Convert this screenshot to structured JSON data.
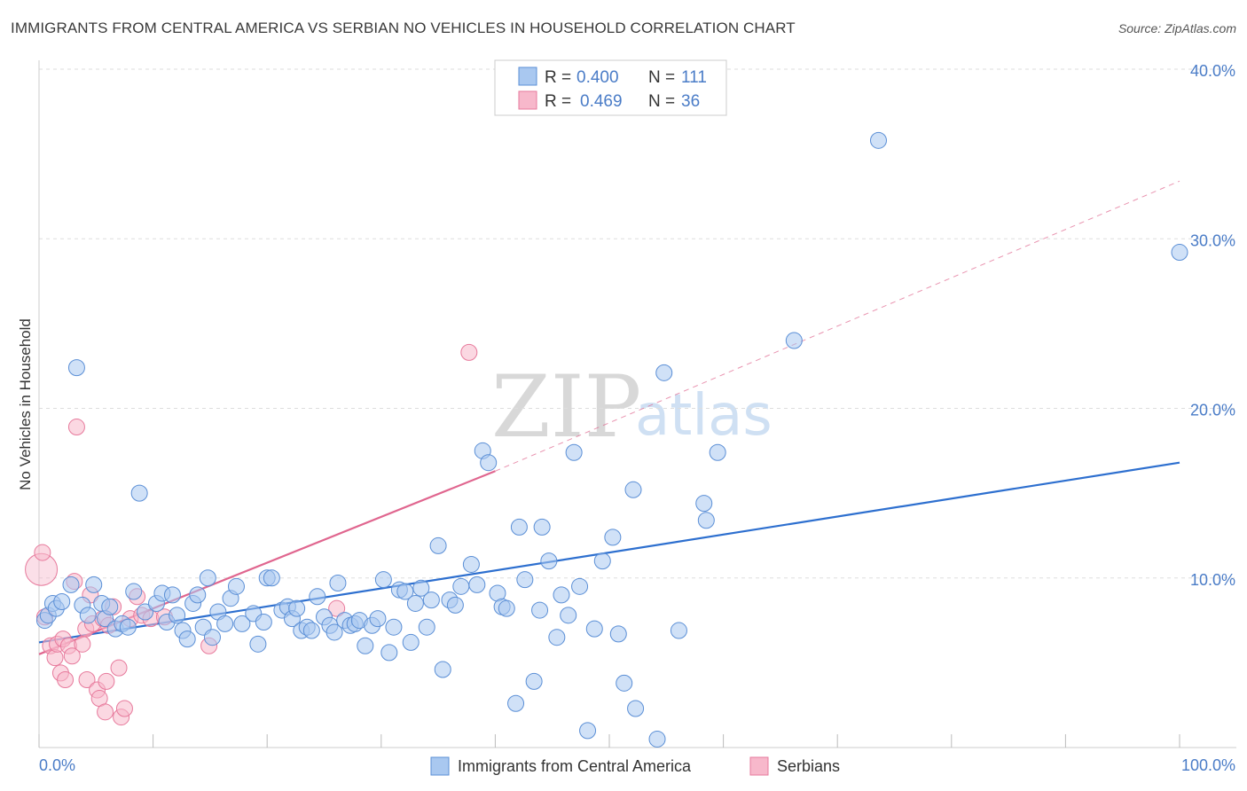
{
  "title": "IMMIGRANTS FROM CENTRAL AMERICA VS SERBIAN NO VEHICLES IN HOUSEHOLD CORRELATION CHART",
  "source": "Source: ZipAtlas.com",
  "watermark": {
    "zip": "ZIP",
    "atlas": "atlas"
  },
  "colors": {
    "blue_fill": "#a9c8f0",
    "blue_stroke": "#5b8fd6",
    "blue_line": "#2d6fcf",
    "pink_fill": "#f7b8cb",
    "pink_stroke": "#e77a9c",
    "pink_line": "#e0668f",
    "tick_text": "#4a7cc7",
    "grid": "#dddddd"
  },
  "legend_top": {
    "rows": [
      {
        "r_label": "R = ",
        "r_value": "0.400",
        "n_label": "N = ",
        "n_value": "111",
        "series": "blue"
      },
      {
        "r_label": "R = ",
        "r_value": "0.469",
        "n_label": "N = ",
        "n_value": "36",
        "series": "pink"
      }
    ]
  },
  "legend_bottom": [
    {
      "label": "Immigrants from Central America",
      "series": "blue"
    },
    {
      "label": "Serbians",
      "series": "pink"
    }
  ],
  "chart_data": {
    "type": "scatter",
    "title": "IMMIGRANTS FROM CENTRAL AMERICA VS SERBIAN NO VEHICLES IN HOUSEHOLD CORRELATION CHART",
    "xlabel": "",
    "ylabel": "No Vehicles in Household",
    "xlim": [
      0,
      100
    ],
    "ylim": [
      0,
      40
    ],
    "x_tick_labels": [
      "0.0%",
      "100.0%"
    ],
    "y_ticks": [
      10,
      20,
      30,
      40
    ],
    "y_tick_labels": [
      "10.0%",
      "20.0%",
      "30.0%",
      "40.0%"
    ],
    "series": [
      {
        "name": "Immigrants from Central America",
        "color": "blue",
        "R": 0.4,
        "N": 111,
        "trend": {
          "x": [
            0,
            100
          ],
          "y": [
            6.2,
            16.8
          ],
          "style": "solid"
        },
        "points": [
          {
            "x": 0.5,
            "y": 7.5
          },
          {
            "x": 0.8,
            "y": 7.8
          },
          {
            "x": 1.2,
            "y": 8.5
          },
          {
            "x": 1.5,
            "y": 8.2
          },
          {
            "x": 2.0,
            "y": 8.6
          },
          {
            "x": 2.8,
            "y": 9.6
          },
          {
            "x": 3.3,
            "y": 22.4
          },
          {
            "x": 3.8,
            "y": 8.4
          },
          {
            "x": 4.3,
            "y": 7.8
          },
          {
            "x": 4.8,
            "y": 9.6
          },
          {
            "x": 5.5,
            "y": 8.5
          },
          {
            "x": 5.8,
            "y": 7.6
          },
          {
            "x": 6.2,
            "y": 8.3
          },
          {
            "x": 6.7,
            "y": 7.0
          },
          {
            "x": 7.3,
            "y": 7.3
          },
          {
            "x": 7.8,
            "y": 7.1
          },
          {
            "x": 8.3,
            "y": 9.2
          },
          {
            "x": 8.8,
            "y": 15.0
          },
          {
            "x": 9.3,
            "y": 8.0
          },
          {
            "x": 10.3,
            "y": 8.5
          },
          {
            "x": 10.8,
            "y": 9.1
          },
          {
            "x": 11.2,
            "y": 7.4
          },
          {
            "x": 11.7,
            "y": 9.0
          },
          {
            "x": 12.1,
            "y": 7.8
          },
          {
            "x": 12.6,
            "y": 6.9
          },
          {
            "x": 13.0,
            "y": 6.4
          },
          {
            "x": 13.5,
            "y": 8.5
          },
          {
            "x": 13.9,
            "y": 9.0
          },
          {
            "x": 14.4,
            "y": 7.1
          },
          {
            "x": 14.8,
            "y": 10.0
          },
          {
            "x": 15.2,
            "y": 6.5
          },
          {
            "x": 15.7,
            "y": 8.0
          },
          {
            "x": 16.3,
            "y": 7.3
          },
          {
            "x": 16.8,
            "y": 8.8
          },
          {
            "x": 17.3,
            "y": 9.5
          },
          {
            "x": 17.8,
            "y": 7.3
          },
          {
            "x": 18.8,
            "y": 7.9
          },
          {
            "x": 19.2,
            "y": 6.1
          },
          {
            "x": 19.7,
            "y": 7.4
          },
          {
            "x": 20.0,
            "y": 10.0
          },
          {
            "x": 20.4,
            "y": 10.0
          },
          {
            "x": 21.3,
            "y": 8.1
          },
          {
            "x": 21.8,
            "y": 8.3
          },
          {
            "x": 22.2,
            "y": 7.6
          },
          {
            "x": 22.6,
            "y": 8.2
          },
          {
            "x": 23.0,
            "y": 6.9
          },
          {
            "x": 23.5,
            "y": 7.1
          },
          {
            "x": 23.9,
            "y": 6.9
          },
          {
            "x": 24.4,
            "y": 8.9
          },
          {
            "x": 25.0,
            "y": 7.7
          },
          {
            "x": 25.5,
            "y": 7.2
          },
          {
            "x": 25.9,
            "y": 6.8
          },
          {
            "x": 26.2,
            "y": 9.7
          },
          {
            "x": 26.8,
            "y": 7.5
          },
          {
            "x": 27.3,
            "y": 7.2
          },
          {
            "x": 27.7,
            "y": 7.3
          },
          {
            "x": 28.1,
            "y": 7.5
          },
          {
            "x": 28.6,
            "y": 6.0
          },
          {
            "x": 29.2,
            "y": 7.2
          },
          {
            "x": 29.7,
            "y": 7.6
          },
          {
            "x": 30.2,
            "y": 9.9
          },
          {
            "x": 30.7,
            "y": 5.6
          },
          {
            "x": 31.1,
            "y": 7.1
          },
          {
            "x": 31.6,
            "y": 9.3
          },
          {
            "x": 32.1,
            "y": 9.2
          },
          {
            "x": 32.6,
            "y": 6.2
          },
          {
            "x": 33.0,
            "y": 8.5
          },
          {
            "x": 33.5,
            "y": 9.4
          },
          {
            "x": 34.0,
            "y": 7.1
          },
          {
            "x": 34.4,
            "y": 8.7
          },
          {
            "x": 35.0,
            "y": 11.9
          },
          {
            "x": 35.4,
            "y": 4.6
          },
          {
            "x": 36.0,
            "y": 8.7
          },
          {
            "x": 36.5,
            "y": 8.4
          },
          {
            "x": 37.0,
            "y": 9.5
          },
          {
            "x": 37.9,
            "y": 10.8
          },
          {
            "x": 38.4,
            "y": 9.6
          },
          {
            "x": 38.9,
            "y": 17.5
          },
          {
            "x": 39.4,
            "y": 16.8
          },
          {
            "x": 40.2,
            "y": 9.1
          },
          {
            "x": 40.6,
            "y": 8.3
          },
          {
            "x": 41.0,
            "y": 8.2
          },
          {
            "x": 41.8,
            "y": 2.6
          },
          {
            "x": 42.1,
            "y": 13.0
          },
          {
            "x": 42.6,
            "y": 9.9
          },
          {
            "x": 43.4,
            "y": 3.9
          },
          {
            "x": 43.9,
            "y": 8.1
          },
          {
            "x": 44.1,
            "y": 13.0
          },
          {
            "x": 44.7,
            "y": 11.0
          },
          {
            "x": 45.4,
            "y": 6.5
          },
          {
            "x": 45.8,
            "y": 9.0
          },
          {
            "x": 46.4,
            "y": 7.8
          },
          {
            "x": 46.9,
            "y": 17.4
          },
          {
            "x": 47.4,
            "y": 9.5
          },
          {
            "x": 48.1,
            "y": 1.0
          },
          {
            "x": 48.7,
            "y": 7.0
          },
          {
            "x": 49.4,
            "y": 11.0
          },
          {
            "x": 50.3,
            "y": 12.4
          },
          {
            "x": 50.8,
            "y": 6.7
          },
          {
            "x": 51.3,
            "y": 3.8
          },
          {
            "x": 52.1,
            "y": 15.2
          },
          {
            "x": 52.3,
            "y": 2.3
          },
          {
            "x": 54.2,
            "y": 0.5
          },
          {
            "x": 54.8,
            "y": 22.1
          },
          {
            "x": 56.1,
            "y": 6.9
          },
          {
            "x": 58.3,
            "y": 14.4
          },
          {
            "x": 58.5,
            "y": 13.4
          },
          {
            "x": 59.5,
            "y": 17.4
          },
          {
            "x": 66.2,
            "y": 24.0
          },
          {
            "x": 73.6,
            "y": 35.8
          },
          {
            "x": 100.0,
            "y": 29.2
          }
        ]
      },
      {
        "name": "Serbians",
        "color": "pink",
        "R": 0.469,
        "N": 36,
        "trend": {
          "x": [
            0,
            40
          ],
          "y": [
            5.5,
            16.3
          ],
          "style": "solid",
          "extension": {
            "x": [
              40,
              100
            ],
            "y": [
              16.3,
              33.4
            ],
            "style": "dashed"
          }
        },
        "points": [
          {
            "x": 0.2,
            "y": 10.5,
            "big": true
          },
          {
            "x": 0.3,
            "y": 11.5
          },
          {
            "x": 0.5,
            "y": 7.7
          },
          {
            "x": 1.0,
            "y": 6.0
          },
          {
            "x": 1.4,
            "y": 5.3
          },
          {
            "x": 1.6,
            "y": 6.1
          },
          {
            "x": 1.9,
            "y": 4.4
          },
          {
            "x": 2.1,
            "y": 6.4
          },
          {
            "x": 2.3,
            "y": 4.0
          },
          {
            "x": 2.6,
            "y": 6.0
          },
          {
            "x": 2.9,
            "y": 5.4
          },
          {
            "x": 3.1,
            "y": 9.8
          },
          {
            "x": 3.3,
            "y": 18.9
          },
          {
            "x": 3.8,
            "y": 6.1
          },
          {
            "x": 4.1,
            "y": 7.0
          },
          {
            "x": 4.2,
            "y": 4.0
          },
          {
            "x": 4.5,
            "y": 9.0
          },
          {
            "x": 4.7,
            "y": 7.3
          },
          {
            "x": 5.1,
            "y": 3.4
          },
          {
            "x": 5.3,
            "y": 2.9
          },
          {
            "x": 5.6,
            "y": 7.6
          },
          {
            "x": 5.8,
            "y": 2.1
          },
          {
            "x": 5.9,
            "y": 3.9
          },
          {
            "x": 6.1,
            "y": 7.2
          },
          {
            "x": 6.5,
            "y": 8.3
          },
          {
            "x": 7.0,
            "y": 4.7
          },
          {
            "x": 7.2,
            "y": 1.8
          },
          {
            "x": 7.5,
            "y": 2.3
          },
          {
            "x": 8.0,
            "y": 7.6
          },
          {
            "x": 8.6,
            "y": 8.9
          },
          {
            "x": 9.0,
            "y": 7.8
          },
          {
            "x": 9.8,
            "y": 7.6
          },
          {
            "x": 11.0,
            "y": 7.7
          },
          {
            "x": 14.9,
            "y": 6.0
          },
          {
            "x": 26.1,
            "y": 8.2
          },
          {
            "x": 37.7,
            "y": 23.3
          }
        ]
      }
    ]
  }
}
